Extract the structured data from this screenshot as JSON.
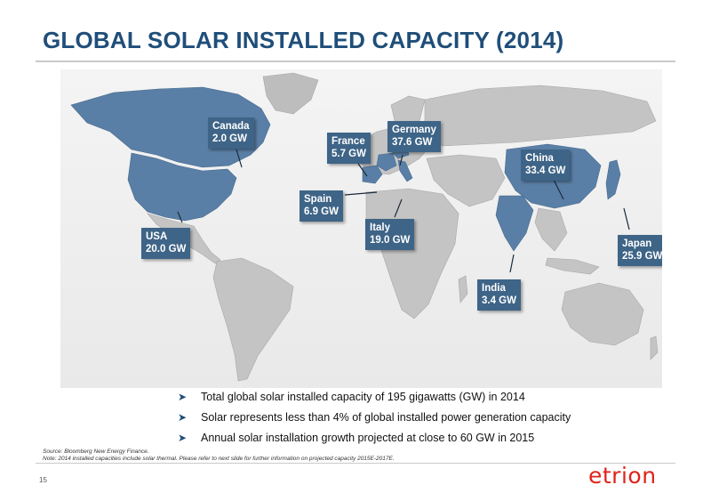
{
  "slide": {
    "title": "GLOBAL SOLAR INSTALLED CAPACITY (2014)",
    "page_number": "15",
    "logo_text": "etrion"
  },
  "map": {
    "callouts": [
      {
        "country": "Canada",
        "capacity": "2.0 GW"
      },
      {
        "country": "France",
        "capacity": "5.7 GW"
      },
      {
        "country": "Germany",
        "capacity": "37.6 GW"
      },
      {
        "country": "China",
        "capacity": "33.4 GW"
      },
      {
        "country": "Spain",
        "capacity": "6.9 GW"
      },
      {
        "country": "USA",
        "capacity": "20.0 GW"
      },
      {
        "country": "Italy",
        "capacity": "19.0 GW"
      },
      {
        "country": "Japan",
        "capacity": "25.9 GW"
      },
      {
        "country": "India",
        "capacity": "3.4 GW"
      }
    ],
    "colors": {
      "highlight": "#5a7fa6",
      "callout": "#3e6487",
      "land": "#c4c4c4"
    }
  },
  "bullets": [
    "Total global solar installed capacity of 195 gigawatts (GW) in 2014",
    "Solar represents less than 4% of global installed power generation capacity",
    "Annual solar installation growth projected at close to 60 GW in 2015"
  ],
  "footer": {
    "source": "Source: Bloomberg New Energy Finance.",
    "note": "Note: 2014 installed capacities include solar thermal. Please refer to next slide for further information on projected capacity 2015E-2017E."
  }
}
